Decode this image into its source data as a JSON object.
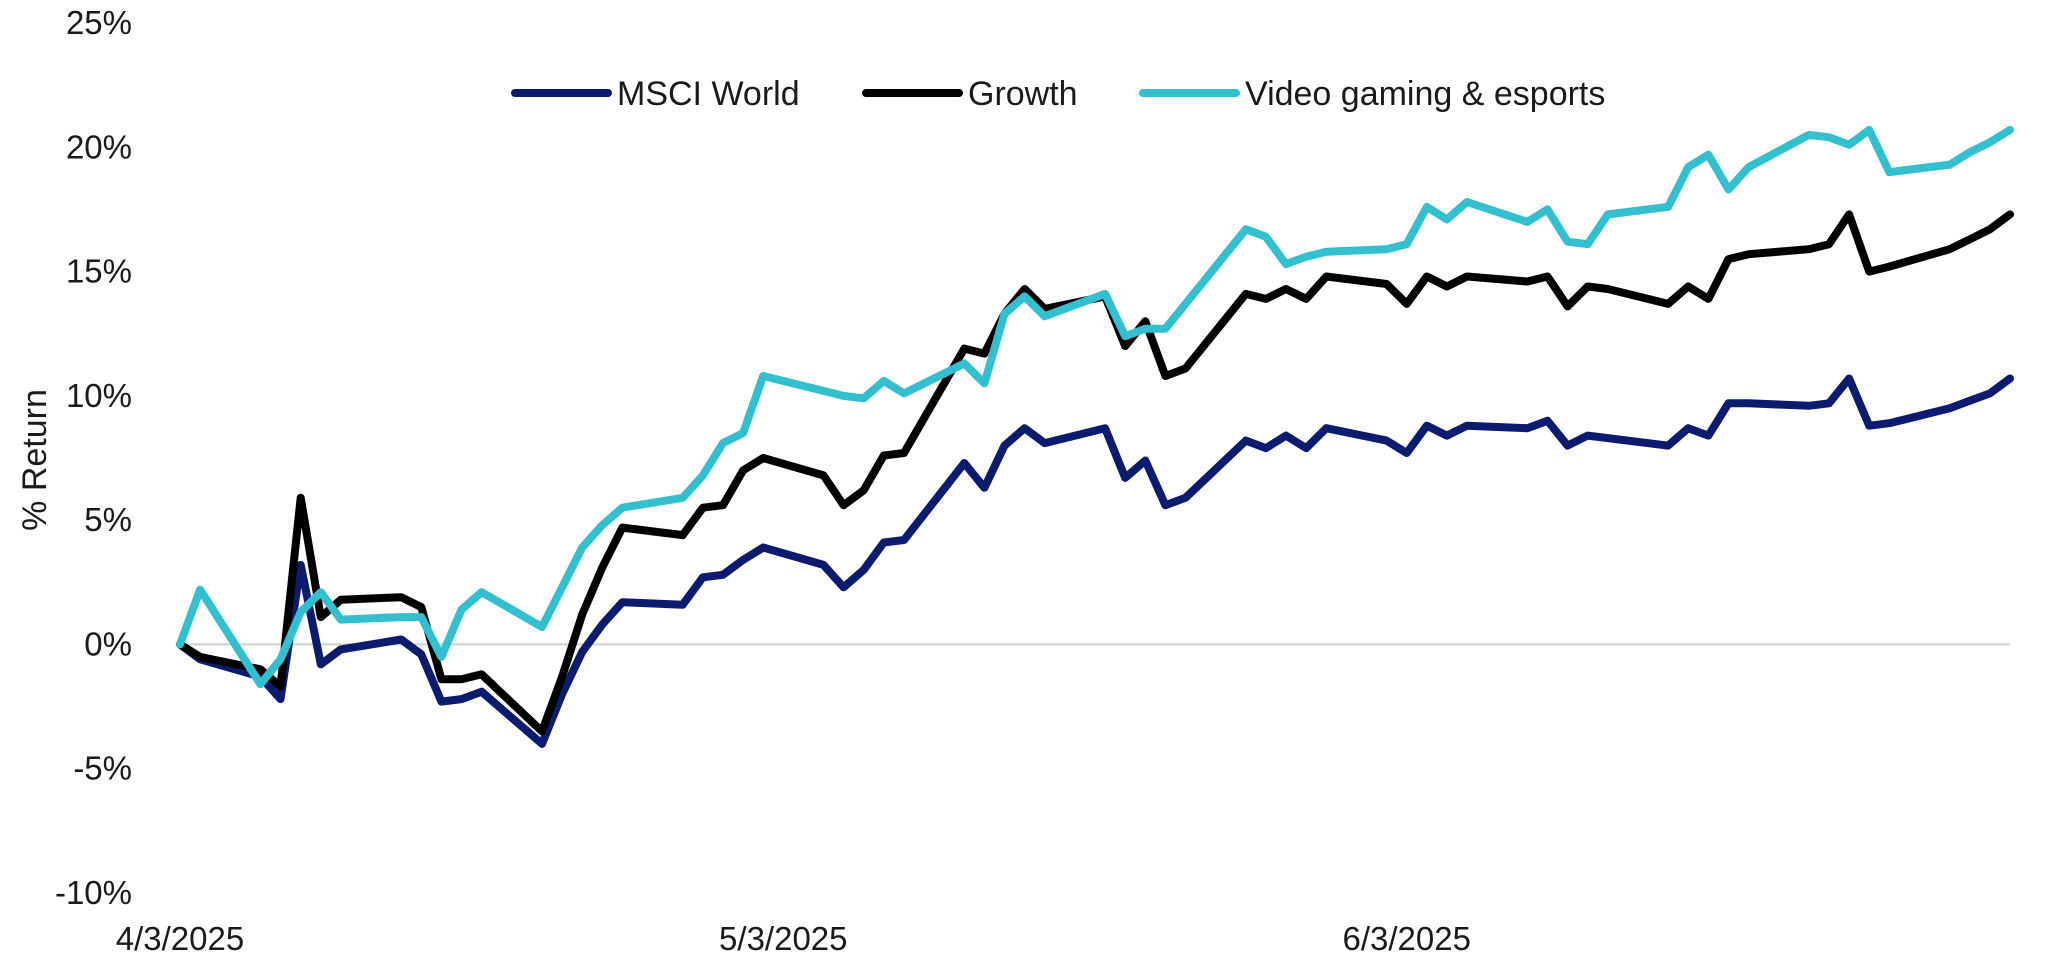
{
  "chart_data": {
    "type": "line",
    "title": "",
    "xlabel": "",
    "ylabel": "% Return",
    "ylim": [
      -10,
      25
    ],
    "y_ticks": [
      -10,
      -5,
      0,
      5,
      10,
      15,
      20,
      25
    ],
    "y_tick_labels": [
      "-10%",
      "-5%",
      "0%",
      "5%",
      "10%",
      "15%",
      "20%",
      "25%"
    ],
    "x_range": [
      "2025-04-03",
      "2025-07-03"
    ],
    "x_ticks": [
      "2025-04-03",
      "2025-05-03",
      "2025-06-03"
    ],
    "x_tick_labels": [
      "4/3/2025",
      "5/3/2025",
      "6/3/2025"
    ],
    "zero_line": true,
    "grid": false,
    "legend_position": "top-center",
    "series": [
      {
        "name": "MSCI World",
        "color": "#0d1b6e",
        "x": [
          "2025-04-03",
          "2025-04-04",
          "2025-04-07",
          "2025-04-08",
          "2025-04-09",
          "2025-04-10",
          "2025-04-11",
          "2025-04-14",
          "2025-04-15",
          "2025-04-16",
          "2025-04-17",
          "2025-04-18",
          "2025-04-21",
          "2025-04-22",
          "2025-04-23",
          "2025-04-24",
          "2025-04-25",
          "2025-04-28",
          "2025-04-29",
          "2025-04-30",
          "2025-05-01",
          "2025-05-02",
          "2025-05-05",
          "2025-05-06",
          "2025-05-07",
          "2025-05-08",
          "2025-05-09",
          "2025-05-12",
          "2025-05-13",
          "2025-05-14",
          "2025-05-15",
          "2025-05-16",
          "2025-05-19",
          "2025-05-20",
          "2025-05-21",
          "2025-05-22",
          "2025-05-23",
          "2025-05-26",
          "2025-05-27",
          "2025-05-28",
          "2025-05-29",
          "2025-05-30",
          "2025-06-02",
          "2025-06-03",
          "2025-06-04",
          "2025-06-05",
          "2025-06-06",
          "2025-06-09",
          "2025-06-10",
          "2025-06-11",
          "2025-06-12",
          "2025-06-13",
          "2025-06-16",
          "2025-06-17",
          "2025-06-18",
          "2025-06-19",
          "2025-06-20",
          "2025-06-23",
          "2025-06-24",
          "2025-06-25",
          "2025-06-26",
          "2025-06-27",
          "2025-06-30",
          "2025-07-01",
          "2025-07-02",
          "2025-07-03"
        ],
        "values": [
          0.0,
          -0.6,
          -1.3,
          -2.2,
          3.2,
          -0.8,
          -0.2,
          0.2,
          -0.4,
          -2.3,
          -2.2,
          -1.9,
          -4.0,
          -2.0,
          -0.3,
          0.8,
          1.7,
          1.6,
          2.7,
          2.8,
          3.4,
          3.9,
          3.2,
          2.3,
          3.0,
          4.1,
          4.2,
          7.3,
          6.3,
          8.0,
          8.7,
          8.1,
          8.7,
          6.7,
          7.4,
          5.6,
          5.9,
          8.2,
          7.9,
          8.4,
          7.9,
          8.7,
          8.2,
          7.7,
          8.8,
          8.4,
          8.8,
          8.7,
          9.0,
          8.0,
          8.4,
          8.3,
          8.0,
          8.7,
          8.4,
          9.7,
          9.7,
          9.6,
          9.7,
          10.7,
          8.8,
          8.9,
          9.5,
          9.8,
          10.1,
          10.7
        ]
      },
      {
        "name": "Growth",
        "color": "#000000",
        "x": [
          "2025-04-03",
          "2025-04-04",
          "2025-04-07",
          "2025-04-08",
          "2025-04-09",
          "2025-04-10",
          "2025-04-11",
          "2025-04-14",
          "2025-04-15",
          "2025-04-16",
          "2025-04-17",
          "2025-04-18",
          "2025-04-21",
          "2025-04-22",
          "2025-04-23",
          "2025-04-24",
          "2025-04-25",
          "2025-04-28",
          "2025-04-29",
          "2025-04-30",
          "2025-05-01",
          "2025-05-02",
          "2025-05-05",
          "2025-05-06",
          "2025-05-07",
          "2025-05-08",
          "2025-05-09",
          "2025-05-12",
          "2025-05-13",
          "2025-05-14",
          "2025-05-15",
          "2025-05-16",
          "2025-05-19",
          "2025-05-20",
          "2025-05-21",
          "2025-05-22",
          "2025-05-23",
          "2025-05-26",
          "2025-05-27",
          "2025-05-28",
          "2025-05-29",
          "2025-05-30",
          "2025-06-02",
          "2025-06-03",
          "2025-06-04",
          "2025-06-05",
          "2025-06-06",
          "2025-06-09",
          "2025-06-10",
          "2025-06-11",
          "2025-06-12",
          "2025-06-13",
          "2025-06-16",
          "2025-06-17",
          "2025-06-18",
          "2025-06-19",
          "2025-06-20",
          "2025-06-23",
          "2025-06-24",
          "2025-06-25",
          "2025-06-26",
          "2025-06-27",
          "2025-06-30",
          "2025-07-01",
          "2025-07-02",
          "2025-07-03"
        ],
        "values": [
          0.0,
          -0.5,
          -1.0,
          -1.7,
          5.9,
          1.1,
          1.8,
          1.9,
          1.5,
          -1.4,
          -1.4,
          -1.2,
          -3.5,
          -1.3,
          1.2,
          3.1,
          4.7,
          4.4,
          5.5,
          5.6,
          7.0,
          7.5,
          6.8,
          5.6,
          6.2,
          7.6,
          7.7,
          11.9,
          11.7,
          13.3,
          14.3,
          13.5,
          14.0,
          12.0,
          13.0,
          10.8,
          11.1,
          14.1,
          13.9,
          14.3,
          13.9,
          14.8,
          14.5,
          13.7,
          14.8,
          14.4,
          14.8,
          14.6,
          14.8,
          13.6,
          14.4,
          14.3,
          13.7,
          14.4,
          13.9,
          15.5,
          15.7,
          15.9,
          16.1,
          17.3,
          15.0,
          15.2,
          15.9,
          16.3,
          16.7,
          17.3
        ]
      },
      {
        "name": "Video gaming & esports",
        "color": "#34bfcf",
        "x": [
          "2025-04-03",
          "2025-04-04",
          "2025-04-07",
          "2025-04-08",
          "2025-04-09",
          "2025-04-10",
          "2025-04-11",
          "2025-04-14",
          "2025-04-15",
          "2025-04-16",
          "2025-04-17",
          "2025-04-18",
          "2025-04-21",
          "2025-04-22",
          "2025-04-23",
          "2025-04-24",
          "2025-04-25",
          "2025-04-28",
          "2025-04-29",
          "2025-04-30",
          "2025-05-01",
          "2025-05-02",
          "2025-05-05",
          "2025-05-06",
          "2025-05-07",
          "2025-05-08",
          "2025-05-09",
          "2025-05-12",
          "2025-05-13",
          "2025-05-14",
          "2025-05-15",
          "2025-05-16",
          "2025-05-19",
          "2025-05-20",
          "2025-05-21",
          "2025-05-22",
          "2025-05-23",
          "2025-05-26",
          "2025-05-27",
          "2025-05-28",
          "2025-05-29",
          "2025-05-30",
          "2025-06-02",
          "2025-06-03",
          "2025-06-04",
          "2025-06-05",
          "2025-06-06",
          "2025-06-09",
          "2025-06-10",
          "2025-06-11",
          "2025-06-12",
          "2025-06-13",
          "2025-06-16",
          "2025-06-17",
          "2025-06-18",
          "2025-06-19",
          "2025-06-20",
          "2025-06-23",
          "2025-06-24",
          "2025-06-25",
          "2025-06-26",
          "2025-06-27",
          "2025-06-30",
          "2025-07-01",
          "2025-07-02",
          "2025-07-03"
        ],
        "values": [
          0.0,
          2.2,
          -1.6,
          -0.6,
          1.3,
          2.1,
          1.0,
          1.1,
          1.1,
          -0.5,
          1.4,
          2.1,
          0.7,
          2.3,
          3.9,
          4.8,
          5.5,
          5.9,
          6.8,
          8.1,
          8.5,
          10.8,
          10.2,
          10.0,
          9.9,
          10.6,
          10.1,
          11.3,
          10.5,
          13.3,
          14.0,
          13.2,
          14.1,
          12.4,
          12.7,
          12.7,
          13.7,
          16.7,
          16.4,
          15.3,
          15.6,
          15.8,
          15.9,
          16.1,
          17.6,
          17.1,
          17.8,
          17.0,
          17.5,
          16.2,
          16.1,
          17.3,
          17.6,
          19.2,
          19.7,
          18.3,
          19.2,
          20.5,
          20.4,
          20.1,
          20.7,
          19.0,
          19.3,
          19.8,
          20.2,
          20.7
        ]
      }
    ]
  }
}
